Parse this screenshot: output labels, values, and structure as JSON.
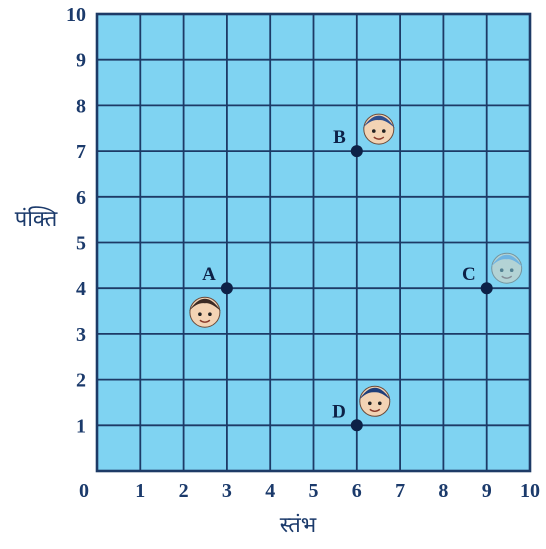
{
  "grid": {
    "x_range": [
      0,
      10
    ],
    "y_range": [
      0,
      10
    ],
    "x_ticks": [
      "1",
      "2",
      "3",
      "4",
      "5",
      "6",
      "7",
      "8",
      "9",
      "10"
    ],
    "y_ticks": [
      "1",
      "2",
      "3",
      "4",
      "5",
      "6",
      "7",
      "8",
      "9",
      "10"
    ],
    "origin_label": "0",
    "x_axis_title": "स्तंभ",
    "y_axis_title": "पंक्ति"
  },
  "points": [
    {
      "label": "A",
      "x": 3,
      "y": 4,
      "icon": "girl-face-icon"
    },
    {
      "label": "B",
      "x": 6,
      "y": 7,
      "icon": "boy-face-icon"
    },
    {
      "label": "C",
      "x": 9,
      "y": 4,
      "icon": "faded-face-icon"
    },
    {
      "label": "D",
      "x": 6,
      "y": 1,
      "icon": "child-face-icon"
    }
  ],
  "colors": {
    "grid_fill": "#7fd3f2",
    "grid_line": "#1d3a66",
    "point": "#0d2147",
    "text": "#1b3a6b"
  }
}
